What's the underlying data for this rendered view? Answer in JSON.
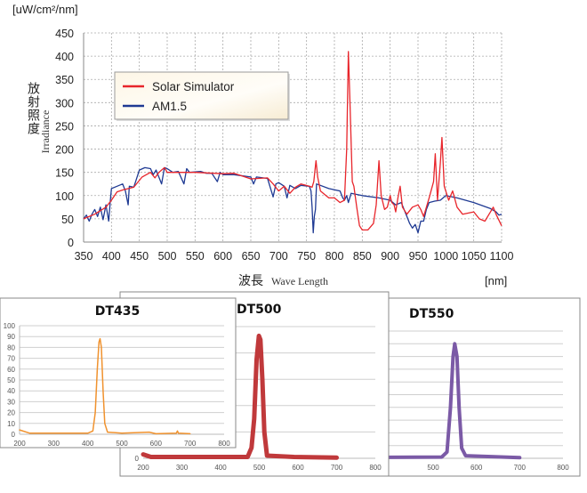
{
  "chart_data": [
    {
      "type": "line",
      "y_unit_label": "[uW/cm²/nm]",
      "ylabel_jp": "放射照度",
      "ylabel": "Irradiance",
      "xlabel_jp": "波長",
      "xlabel": "Wave Length",
      "x_unit_label": "[nm]",
      "xlim": [
        350,
        1100
      ],
      "ylim": [
        0,
        450
      ],
      "xticks": [
        350,
        400,
        450,
        500,
        550,
        600,
        650,
        700,
        750,
        800,
        850,
        900,
        950,
        1000,
        1050,
        1100
      ],
      "yticks": [
        0,
        50,
        100,
        150,
        200,
        250,
        300,
        350,
        400,
        450
      ],
      "grid": true,
      "legend": "upper-left",
      "series": [
        {
          "name": "Solar Simulator",
          "color": "#e8252b",
          "points": [
            [
              350,
              50
            ],
            [
              370,
              60
            ],
            [
              390,
              75
            ],
            [
              400,
              90
            ],
            [
              410,
              108
            ],
            [
              420,
              112
            ],
            [
              440,
              118
            ],
            [
              455,
              140
            ],
            [
              470,
              150
            ],
            [
              478,
              138
            ],
            [
              485,
              150
            ],
            [
              495,
              160
            ],
            [
              500,
              150
            ],
            [
              550,
              150
            ],
            [
              600,
              147
            ],
            [
              620,
              148
            ],
            [
              650,
              136
            ],
            [
              680,
              138
            ],
            [
              690,
              125
            ],
            [
              700,
              110
            ],
            [
              710,
              120
            ],
            [
              720,
              105
            ],
            [
              730,
              118
            ],
            [
              740,
              125
            ],
            [
              755,
              120
            ],
            [
              760,
              118
            ],
            [
              763,
              130
            ],
            [
              767,
              175
            ],
            [
              770,
              140
            ],
            [
              775,
              110
            ],
            [
              790,
              95
            ],
            [
              800,
              95
            ],
            [
              810,
              85
            ],
            [
              818,
              90
            ],
            [
              822,
              200
            ],
            [
              825,
              410
            ],
            [
              828,
              300
            ],
            [
              832,
              130
            ],
            [
              835,
              120
            ],
            [
              840,
              75
            ],
            [
              845,
              35
            ],
            [
              850,
              26
            ],
            [
              860,
              26
            ],
            [
              870,
              40
            ],
            [
              875,
              80
            ],
            [
              880,
              175
            ],
            [
              884,
              100
            ],
            [
              890,
              70
            ],
            [
              895,
              75
            ],
            [
              900,
              100
            ],
            [
              903,
              85
            ],
            [
              907,
              80
            ],
            [
              910,
              65
            ],
            [
              914,
              95
            ],
            [
              918,
              120
            ],
            [
              922,
              75
            ],
            [
              930,
              60
            ],
            [
              940,
              75
            ],
            [
              950,
              80
            ],
            [
              955,
              70
            ],
            [
              960,
              55
            ],
            [
              970,
              95
            ],
            [
              978,
              130
            ],
            [
              981,
              190
            ],
            [
              985,
              90
            ],
            [
              990,
              170
            ],
            [
              993,
              225
            ],
            [
              997,
              120
            ],
            [
              1005,
              90
            ],
            [
              1012,
              110
            ],
            [
              1020,
              75
            ],
            [
              1030,
              60
            ],
            [
              1050,
              65
            ],
            [
              1060,
              50
            ],
            [
              1070,
              45
            ],
            [
              1080,
              65
            ],
            [
              1085,
              75
            ],
            [
              1090,
              60
            ],
            [
              1100,
              35
            ]
          ]
        },
        {
          "name": "AM1.5",
          "color": "#1f3a93",
          "points": [
            [
              350,
              50
            ],
            [
              355,
              58
            ],
            [
              360,
              45
            ],
            [
              365,
              60
            ],
            [
              370,
              70
            ],
            [
              375,
              55
            ],
            [
              380,
              75
            ],
            [
              385,
              48
            ],
            [
              390,
              80
            ],
            [
              395,
              45
            ],
            [
              398,
              90
            ],
            [
              400,
              115
            ],
            [
              410,
              120
            ],
            [
              420,
              125
            ],
            [
              425,
              110
            ],
            [
              430,
              80
            ],
            [
              432,
              120
            ],
            [
              440,
              118
            ],
            [
              450,
              155
            ],
            [
              460,
              160
            ],
            [
              470,
              158
            ],
            [
              475,
              145
            ],
            [
              480,
              155
            ],
            [
              485,
              140
            ],
            [
              490,
              125
            ],
            [
              495,
              160
            ],
            [
              500,
              158
            ],
            [
              510,
              150
            ],
            [
              520,
              152
            ],
            [
              530,
              125
            ],
            [
              535,
              158
            ],
            [
              540,
              150
            ],
            [
              560,
              152
            ],
            [
              570,
              148
            ],
            [
              580,
              148
            ],
            [
              590,
              130
            ],
            [
              595,
              150
            ],
            [
              600,
              145
            ],
            [
              620,
              145
            ],
            [
              650,
              140
            ],
            [
              655,
              125
            ],
            [
              660,
              140
            ],
            [
              680,
              137
            ],
            [
              690,
              97
            ],
            [
              695,
              125
            ],
            [
              700,
              128
            ],
            [
              710,
              120
            ],
            [
              715,
              95
            ],
            [
              720,
              122
            ],
            [
              730,
              115
            ],
            [
              740,
              122
            ],
            [
              755,
              120
            ],
            [
              758,
              110
            ],
            [
              760,
              75
            ],
            [
              762,
              20
            ],
            [
              764,
              55
            ],
            [
              766,
              70
            ],
            [
              768,
              125
            ],
            [
              790,
              115
            ],
            [
              810,
              110
            ],
            [
              815,
              95
            ],
            [
              818,
              90
            ],
            [
              822,
              100
            ],
            [
              825,
              85
            ],
            [
              830,
              105
            ],
            [
              850,
              100
            ],
            [
              880,
              95
            ],
            [
              900,
              90
            ],
            [
              910,
              80
            ],
            [
              920,
              85
            ],
            [
              925,
              70
            ],
            [
              930,
              55
            ],
            [
              935,
              40
            ],
            [
              940,
              30
            ],
            [
              945,
              38
            ],
            [
              950,
              20
            ],
            [
              955,
              45
            ],
            [
              960,
              45
            ],
            [
              965,
              70
            ],
            [
              970,
              85
            ],
            [
              980,
              88
            ],
            [
              990,
              90
            ],
            [
              1000,
              100
            ],
            [
              1020,
              95
            ],
            [
              1050,
              85
            ],
            [
              1080,
              72
            ],
            [
              1090,
              65
            ],
            [
              1095,
              58
            ],
            [
              1100,
              60
            ]
          ]
        }
      ]
    },
    {
      "type": "line",
      "title": "DT435",
      "xlim": [
        200,
        800
      ],
      "ylim": [
        0,
        100
      ],
      "xticks": [
        200,
        300,
        400,
        500,
        600,
        700,
        800
      ],
      "yticks": [
        0,
        10,
        20,
        30,
        40,
        50,
        60,
        70,
        80,
        90,
        100
      ],
      "color": "#f0922e",
      "points": [
        [
          200,
          4
        ],
        [
          230,
          1
        ],
        [
          350,
          1
        ],
        [
          400,
          1
        ],
        [
          415,
          3
        ],
        [
          422,
          20
        ],
        [
          428,
          60
        ],
        [
          433,
          85
        ],
        [
          436,
          88
        ],
        [
          440,
          80
        ],
        [
          445,
          40
        ],
        [
          450,
          10
        ],
        [
          458,
          2
        ],
        [
          500,
          1
        ],
        [
          580,
          2
        ],
        [
          600,
          0.5
        ],
        [
          660,
          1
        ],
        [
          663,
          3
        ],
        [
          666,
          1
        ],
        [
          700,
          0.5
        ]
      ]
    },
    {
      "type": "line",
      "title": "DT500",
      "xlim": [
        200,
        800
      ],
      "ylim": [
        0,
        100
      ],
      "xticks": [
        200,
        300,
        400,
        500,
        600,
        700,
        800
      ],
      "yticks": [
        0
      ],
      "color": "#c0393b",
      "points": [
        [
          200,
          3
        ],
        [
          220,
          1
        ],
        [
          470,
          1
        ],
        [
          480,
          8
        ],
        [
          487,
          30
        ],
        [
          493,
          75
        ],
        [
          499,
          93
        ],
        [
          503,
          90
        ],
        [
          508,
          60
        ],
        [
          513,
          20
        ],
        [
          520,
          2
        ],
        [
          590,
          1
        ],
        [
          700,
          0.5
        ]
      ]
    },
    {
      "type": "line",
      "title": "DT550",
      "xlim": [
        200,
        800
      ],
      "ylim": [
        0,
        100
      ],
      "xticks": [
        500,
        600,
        700,
        800
      ],
      "yticks": [],
      "color": "#7b5aa6",
      "points": [
        [
          200,
          0.5
        ],
        [
          520,
          1
        ],
        [
          532,
          5
        ],
        [
          540,
          40
        ],
        [
          546,
          80
        ],
        [
          550,
          90
        ],
        [
          555,
          80
        ],
        [
          560,
          40
        ],
        [
          566,
          8
        ],
        [
          575,
          2
        ],
        [
          700,
          0.5
        ]
      ]
    }
  ]
}
